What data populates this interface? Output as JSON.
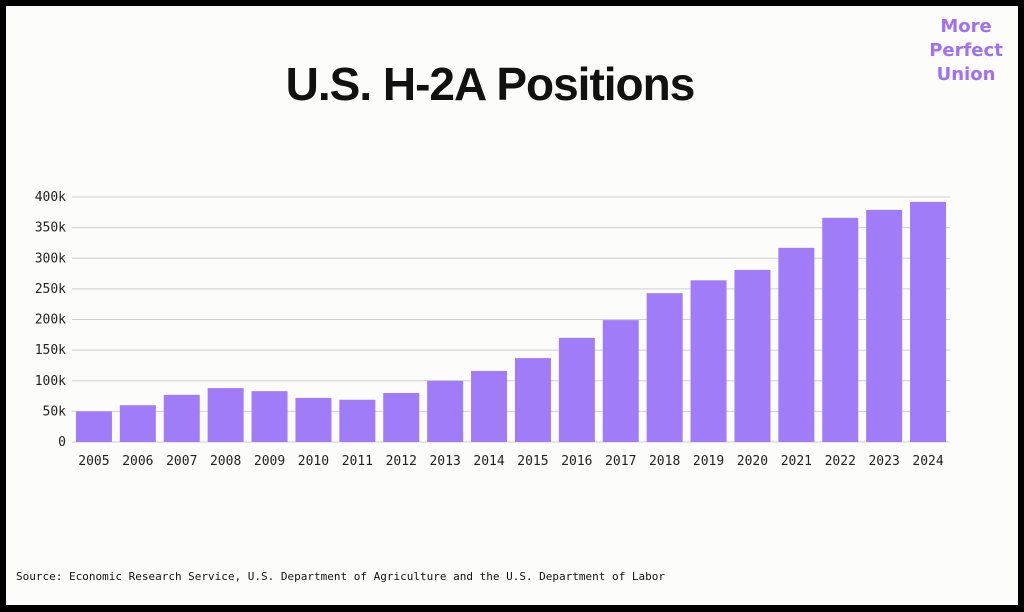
{
  "chart_data": {
    "type": "bar",
    "title": "U.S. H-2A Positions",
    "brand": [
      "More",
      "Perfect",
      "Union"
    ],
    "source": "Source: Economic Research Service, U.S. Department of Agriculture and the U.S. Department of Labor",
    "categories": [
      "2005",
      "2006",
      "2007",
      "2008",
      "2009",
      "2010",
      "2011",
      "2012",
      "2013",
      "2014",
      "2015",
      "2016",
      "2017",
      "2018",
      "2019",
      "2020",
      "2021",
      "2022",
      "2023",
      "2024"
    ],
    "values": [
      50000,
      60000,
      77000,
      88000,
      83000,
      72000,
      69000,
      80000,
      100000,
      116000,
      137000,
      170000,
      199000,
      243000,
      264000,
      281000,
      317000,
      366000,
      379000,
      392000
    ],
    "color": "#a07cf8",
    "ylim": [
      0,
      400000
    ],
    "yticks": [
      0,
      {
        "value": 50000,
        "label": "50k"
      },
      {
        "value": 100000,
        "label": "100k"
      },
      {
        "value": 150000,
        "label": "150k"
      },
      {
        "value": 200000,
        "label": "200k"
      },
      {
        "value": 250000,
        "label": "250k"
      },
      {
        "value": 300000,
        "label": "300k"
      },
      {
        "value": 350000,
        "label": "350k"
      },
      {
        "value": 400000,
        "label": "400k"
      }
    ],
    "grid": true
  }
}
